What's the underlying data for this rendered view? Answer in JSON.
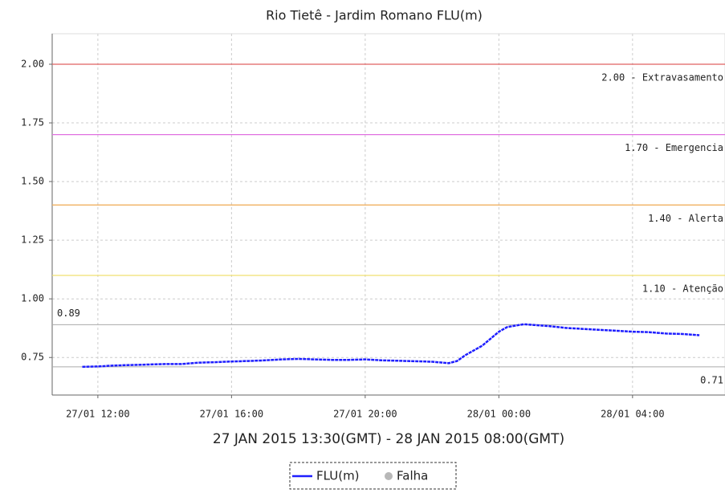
{
  "chart_data": {
    "type": "line",
    "title": "Rio Tietê - Jardim Romano FLU(m)",
    "x_label": "27 JAN 2015 13:30(GMT) - 28 JAN 2015 08:00(GMT)",
    "x": [
      "27/01 11:32",
      "27/01 12:00",
      "27/01 12:30",
      "27/01 13:00",
      "27/01 13:30",
      "27/01 14:00",
      "27/01 14:30",
      "27/01 15:00",
      "27/01 15:30",
      "27/01 16:00",
      "27/01 16:30",
      "27/01 17:00",
      "27/01 17:30",
      "27/01 18:00",
      "27/01 18:30",
      "27/01 19:00",
      "27/01 19:30",
      "27/01 20:00",
      "27/01 20:30",
      "27/01 21:00",
      "27/01 21:30",
      "27/01 22:00",
      "27/01 22:30",
      "27/01 22:45",
      "27/01 23:00",
      "27/01 23:30",
      "27/01 23:45",
      "28/01 00:00",
      "28/01 00:15",
      "28/01 00:30",
      "28/01 00:45",
      "28/01 01:00",
      "28/01 01:30",
      "28/01 02:00",
      "28/01 02:30",
      "28/01 03:00",
      "28/01 03:30",
      "28/01 04:00",
      "28/01 04:30",
      "28/01 05:00",
      "28/01 05:30",
      "28/01 06:00"
    ],
    "series": [
      {
        "name": "FLU(m)",
        "color": "#1f1fff",
        "values": [
          0.71,
          0.712,
          0.716,
          0.718,
          0.72,
          0.722,
          0.722,
          0.728,
          0.73,
          0.733,
          0.735,
          0.738,
          0.742,
          0.744,
          0.742,
          0.74,
          0.74,
          0.742,
          0.738,
          0.736,
          0.734,
          0.732,
          0.726,
          0.735,
          0.76,
          0.8,
          0.83,
          0.86,
          0.88,
          0.886,
          0.892,
          0.889,
          0.884,
          0.876,
          0.872,
          0.868,
          0.864,
          0.86,
          0.858,
          0.852,
          0.85,
          0.845
        ]
      }
    ],
    "failure": {
      "name": "Falha",
      "color": "#b8b8b8"
    },
    "xlim": [
      "27/01 10:38",
      "28/01 06:46"
    ],
    "xticks": [
      "27/01 12:00",
      "27/01 16:00",
      "27/01 20:00",
      "28/01 00:00",
      "28/01 04:00"
    ],
    "ylim": [
      0.59,
      2.13
    ],
    "yticks": [
      0.75,
      {
        "value": 1,
        "label": "1.00"
      },
      1.25,
      {
        "value": 1.5,
        "label": "1.50"
      },
      1.75,
      {
        "value": 2,
        "label": "2.00"
      }
    ],
    "grid": true,
    "thresholds": [
      {
        "value": 2,
        "label": "2.00 - Extravasamento",
        "color": "#e06060"
      },
      {
        "value": 1.7,
        "label": "1.70 - Emergencia",
        "color": "#e070e0"
      },
      {
        "value": 1.4,
        "label": "1.40 - Alerta",
        "color": "#f0b060"
      },
      {
        "value": 1.1,
        "label": "1.10 - Atenção",
        "color": "#f0e070"
      }
    ],
    "reference_lines": [
      0.89,
      0.71
    ]
  }
}
